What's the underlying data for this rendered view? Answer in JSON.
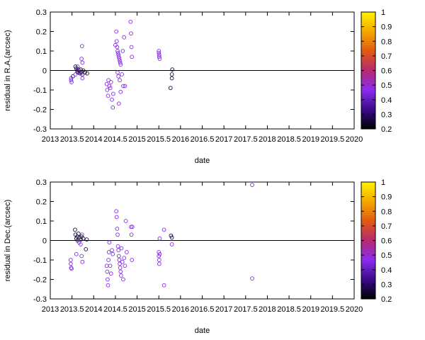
{
  "chart_data": [
    {
      "type": "scatter",
      "xlabel": "date",
      "ylabel": "residual in R.A.(arcsec)",
      "xlim": [
        2013,
        2020
      ],
      "ylim": [
        -0.3,
        0.3
      ],
      "x_ticks": [
        "2013",
        "2013.5",
        "2014",
        "2014.5",
        "2015",
        "2015.5",
        "2016",
        "2016.5",
        "2017",
        "2017.5",
        "2018",
        "2018.5",
        "2019",
        "2019.5",
        "2020"
      ],
      "y_ticks": [
        "-0.3",
        "-0.2",
        "-0.1",
        "0",
        "0.1",
        "0.2",
        "0.3"
      ],
      "zero_line": true,
      "grid": false,
      "colorbar": {
        "range": [
          0.2,
          1
        ],
        "ticks": [
          "0.2",
          "0.3",
          "0.4",
          "0.5",
          "0.6",
          "0.7",
          "0.8",
          "0.9",
          "1"
        ],
        "colors": [
          "#000000",
          "#3a0a8a",
          "#8c2cf0",
          "#b52a70",
          "#e05a10",
          "#f5a800",
          "#fff200"
        ]
      },
      "points": [
        {
          "x": 2013.48,
          "y": -0.04,
          "c": 0.45
        },
        {
          "x": 2013.48,
          "y": -0.05,
          "c": 0.45
        },
        {
          "x": 2013.49,
          "y": -0.06,
          "c": 0.45
        },
        {
          "x": 2013.52,
          "y": -0.03,
          "c": 0.3
        },
        {
          "x": 2013.58,
          "y": 0.02,
          "c": 0.25
        },
        {
          "x": 2013.6,
          "y": 0.01,
          "c": 0.25
        },
        {
          "x": 2013.62,
          "y": 0.0,
          "c": 0.25
        },
        {
          "x": 2013.63,
          "y": -0.01,
          "c": 0.25
        },
        {
          "x": 2013.65,
          "y": 0.005,
          "c": 0.25
        },
        {
          "x": 2013.68,
          "y": -0.015,
          "c": 0.25
        },
        {
          "x": 2013.7,
          "y": 0.005,
          "c": 0.25
        },
        {
          "x": 2013.72,
          "y": -0.01,
          "c": 0.25
        },
        {
          "x": 2013.74,
          "y": -0.02,
          "c": 0.3
        },
        {
          "x": 2013.76,
          "y": 0.0,
          "c": 0.25
        },
        {
          "x": 2013.8,
          "y": -0.01,
          "c": 0.25
        },
        {
          "x": 2013.85,
          "y": -0.015,
          "c": 0.25
        },
        {
          "x": 2013.72,
          "y": 0.06,
          "c": 0.45
        },
        {
          "x": 2013.74,
          "y": 0.04,
          "c": 0.45
        },
        {
          "x": 2013.73,
          "y": 0.125,
          "c": 0.45
        },
        {
          "x": 2013.74,
          "y": -0.04,
          "c": 0.45
        },
        {
          "x": 2013.63,
          "y": 0.02,
          "c": 0.45
        },
        {
          "x": 2013.66,
          "y": -0.01,
          "c": 0.45
        },
        {
          "x": 2013.58,
          "y": -0.02,
          "c": 0.45
        },
        {
          "x": 2014.3,
          "y": -0.07,
          "c": 0.45
        },
        {
          "x": 2014.31,
          "y": -0.1,
          "c": 0.45
        },
        {
          "x": 2014.33,
          "y": -0.13,
          "c": 0.45
        },
        {
          "x": 2014.34,
          "y": -0.05,
          "c": 0.45
        },
        {
          "x": 2014.36,
          "y": -0.08,
          "c": 0.45
        },
        {
          "x": 2014.38,
          "y": -0.09,
          "c": 0.45
        },
        {
          "x": 2014.4,
          "y": -0.06,
          "c": 0.45
        },
        {
          "x": 2014.42,
          "y": -0.15,
          "c": 0.45
        },
        {
          "x": 2014.44,
          "y": -0.19,
          "c": 0.45
        },
        {
          "x": 2014.45,
          "y": -0.12,
          "c": 0.45
        },
        {
          "x": 2014.5,
          "y": 0.13,
          "c": 0.45
        },
        {
          "x": 2014.52,
          "y": 0.2,
          "c": 0.45
        },
        {
          "x": 2014.53,
          "y": 0.15,
          "c": 0.45
        },
        {
          "x": 2014.54,
          "y": 0.12,
          "c": 0.45
        },
        {
          "x": 2014.55,
          "y": 0.1,
          "c": 0.45
        },
        {
          "x": 2014.56,
          "y": 0.09,
          "c": 0.45
        },
        {
          "x": 2014.57,
          "y": 0.08,
          "c": 0.45
        },
        {
          "x": 2014.58,
          "y": 0.07,
          "c": 0.45
        },
        {
          "x": 2014.59,
          "y": 0.06,
          "c": 0.45
        },
        {
          "x": 2014.6,
          "y": 0.05,
          "c": 0.45
        },
        {
          "x": 2014.61,
          "y": 0.04,
          "c": 0.45
        },
        {
          "x": 2014.62,
          "y": 0.03,
          "c": 0.45
        },
        {
          "x": 2014.55,
          "y": -0.01,
          "c": 0.45
        },
        {
          "x": 2014.57,
          "y": -0.03,
          "c": 0.45
        },
        {
          "x": 2014.6,
          "y": -0.05,
          "c": 0.45
        },
        {
          "x": 2014.62,
          "y": -0.11,
          "c": 0.45
        },
        {
          "x": 2014.58,
          "y": -0.17,
          "c": 0.45
        },
        {
          "x": 2014.65,
          "y": -0.02,
          "c": 0.45
        },
        {
          "x": 2014.67,
          "y": 0.1,
          "c": 0.45
        },
        {
          "x": 2014.68,
          "y": -0.08,
          "c": 0.45
        },
        {
          "x": 2014.7,
          "y": 0.17,
          "c": 0.45
        },
        {
          "x": 2014.72,
          "y": -0.08,
          "c": 0.45
        },
        {
          "x": 2014.85,
          "y": 0.25,
          "c": 0.45
        },
        {
          "x": 2014.86,
          "y": 0.19,
          "c": 0.45
        },
        {
          "x": 2014.87,
          "y": 0.12,
          "c": 0.45
        },
        {
          "x": 2014.88,
          "y": 0.07,
          "c": 0.45
        },
        {
          "x": 2015.5,
          "y": 0.1,
          "c": 0.45
        },
        {
          "x": 2015.5,
          "y": 0.09,
          "c": 0.45
        },
        {
          "x": 2015.51,
          "y": 0.08,
          "c": 0.45
        },
        {
          "x": 2015.51,
          "y": 0.07,
          "c": 0.45
        },
        {
          "x": 2015.52,
          "y": 0.06,
          "c": 0.45
        },
        {
          "x": 2015.77,
          "y": -0.09,
          "c": 0.25
        },
        {
          "x": 2015.8,
          "y": -0.02,
          "c": 0.25
        },
        {
          "x": 2015.8,
          "y": -0.04,
          "c": 0.25
        },
        {
          "x": 2015.81,
          "y": 0.005,
          "c": 0.25
        }
      ]
    },
    {
      "type": "scatter",
      "xlabel": "date",
      "ylabel": "residual in Dec.(arcsec)",
      "xlim": [
        2013,
        2020
      ],
      "ylim": [
        -0.3,
        0.3
      ],
      "x_ticks": [
        "2013",
        "2013.5",
        "2014",
        "2014.5",
        "2015",
        "2015.5",
        "2016",
        "2016.5",
        "2017",
        "2017.5",
        "2018",
        "2018.5",
        "2019",
        "2019.5",
        "2020"
      ],
      "y_ticks": [
        "-0.3",
        "-0.2",
        "-0.1",
        "0",
        "0.1",
        "0.2",
        "0.3"
      ],
      "zero_line": true,
      "grid": false,
      "colorbar": {
        "range": [
          0.2,
          1
        ],
        "ticks": [
          "0.2",
          "0.3",
          "0.4",
          "0.5",
          "0.6",
          "0.7",
          "0.8",
          "0.9",
          "1"
        ],
        "colors": [
          "#000000",
          "#3a0a8a",
          "#8c2cf0",
          "#b52a70",
          "#e05a10",
          "#f5a800",
          "#fff200"
        ]
      },
      "points": [
        {
          "x": 2013.47,
          "y": -0.1,
          "c": 0.45
        },
        {
          "x": 2013.47,
          "y": -0.12,
          "c": 0.45
        },
        {
          "x": 2013.48,
          "y": -0.14,
          "c": 0.45
        },
        {
          "x": 2013.49,
          "y": -0.145,
          "c": 0.45
        },
        {
          "x": 2013.57,
          "y": 0.055,
          "c": 0.25
        },
        {
          "x": 2013.58,
          "y": 0.03,
          "c": 0.25
        },
        {
          "x": 2013.6,
          "y": 0.01,
          "c": 0.25
        },
        {
          "x": 2013.62,
          "y": 0.02,
          "c": 0.25
        },
        {
          "x": 2013.63,
          "y": 0.0,
          "c": 0.25
        },
        {
          "x": 2013.65,
          "y": 0.035,
          "c": 0.25
        },
        {
          "x": 2013.67,
          "y": 0.015,
          "c": 0.25
        },
        {
          "x": 2013.7,
          "y": 0.005,
          "c": 0.25
        },
        {
          "x": 2013.72,
          "y": 0.02,
          "c": 0.25
        },
        {
          "x": 2013.76,
          "y": 0.01,
          "c": 0.25
        },
        {
          "x": 2013.82,
          "y": -0.045,
          "c": 0.25
        },
        {
          "x": 2013.84,
          "y": 0.005,
          "c": 0.25
        },
        {
          "x": 2013.66,
          "y": -0.01,
          "c": 0.45
        },
        {
          "x": 2013.7,
          "y": -0.02,
          "c": 0.45
        },
        {
          "x": 2013.72,
          "y": -0.08,
          "c": 0.45
        },
        {
          "x": 2013.74,
          "y": -0.11,
          "c": 0.45
        },
        {
          "x": 2013.6,
          "y": -0.07,
          "c": 0.45
        },
        {
          "x": 2013.73,
          "y": 0.03,
          "c": 0.45
        },
        {
          "x": 2014.3,
          "y": -0.13,
          "c": 0.45
        },
        {
          "x": 2014.31,
          "y": -0.16,
          "c": 0.45
        },
        {
          "x": 2014.32,
          "y": -0.2,
          "c": 0.45
        },
        {
          "x": 2014.33,
          "y": -0.23,
          "c": 0.45
        },
        {
          "x": 2014.34,
          "y": -0.1,
          "c": 0.45
        },
        {
          "x": 2014.35,
          "y": -0.06,
          "c": 0.45
        },
        {
          "x": 2014.36,
          "y": -0.01,
          "c": 0.45
        },
        {
          "x": 2014.38,
          "y": -0.13,
          "c": 0.45
        },
        {
          "x": 2014.4,
          "y": -0.17,
          "c": 0.45
        },
        {
          "x": 2014.42,
          "y": -0.05,
          "c": 0.45
        },
        {
          "x": 2014.44,
          "y": -0.07,
          "c": 0.45
        },
        {
          "x": 2014.52,
          "y": 0.15,
          "c": 0.45
        },
        {
          "x": 2014.53,
          "y": 0.12,
          "c": 0.45
        },
        {
          "x": 2014.54,
          "y": 0.06,
          "c": 0.45
        },
        {
          "x": 2014.55,
          "y": 0.03,
          "c": 0.45
        },
        {
          "x": 2014.56,
          "y": -0.03,
          "c": 0.45
        },
        {
          "x": 2014.57,
          "y": -0.05,
          "c": 0.45
        },
        {
          "x": 2014.58,
          "y": -0.08,
          "c": 0.45
        },
        {
          "x": 2014.59,
          "y": -0.1,
          "c": 0.45
        },
        {
          "x": 2014.6,
          "y": -0.12,
          "c": 0.45
        },
        {
          "x": 2014.61,
          "y": -0.14,
          "c": 0.45
        },
        {
          "x": 2014.62,
          "y": -0.16,
          "c": 0.45
        },
        {
          "x": 2014.63,
          "y": -0.18,
          "c": 0.45
        },
        {
          "x": 2014.64,
          "y": -0.04,
          "c": 0.45
        },
        {
          "x": 2014.66,
          "y": -0.11,
          "c": 0.45
        },
        {
          "x": 2014.68,
          "y": -0.2,
          "c": 0.45
        },
        {
          "x": 2014.7,
          "y": -0.09,
          "c": 0.45
        },
        {
          "x": 2014.72,
          "y": -0.13,
          "c": 0.45
        },
        {
          "x": 2014.74,
          "y": 0.1,
          "c": 0.45
        },
        {
          "x": 2014.76,
          "y": -0.06,
          "c": 0.45
        },
        {
          "x": 2014.86,
          "y": 0.07,
          "c": 0.45
        },
        {
          "x": 2014.87,
          "y": 0.03,
          "c": 0.45
        },
        {
          "x": 2014.88,
          "y": -0.1,
          "c": 0.45
        },
        {
          "x": 2014.89,
          "y": 0.07,
          "c": 0.45
        },
        {
          "x": 2015.5,
          "y": -0.06,
          "c": 0.45
        },
        {
          "x": 2015.5,
          "y": -0.08,
          "c": 0.45
        },
        {
          "x": 2015.51,
          "y": -0.1,
          "c": 0.45
        },
        {
          "x": 2015.51,
          "y": -0.12,
          "c": 0.45
        },
        {
          "x": 2015.52,
          "y": 0.01,
          "c": 0.45
        },
        {
          "x": 2015.52,
          "y": -0.07,
          "c": 0.45
        },
        {
          "x": 2015.62,
          "y": 0.055,
          "c": 0.45
        },
        {
          "x": 2015.62,
          "y": -0.23,
          "c": 0.45
        },
        {
          "x": 2015.78,
          "y": 0.025,
          "c": 0.25
        },
        {
          "x": 2015.8,
          "y": 0.015,
          "c": 0.25
        },
        {
          "x": 2015.8,
          "y": -0.02,
          "c": 0.45
        },
        {
          "x": 2017.65,
          "y": 0.285,
          "c": 0.45
        },
        {
          "x": 2017.65,
          "y": -0.195,
          "c": 0.45
        }
      ]
    }
  ]
}
